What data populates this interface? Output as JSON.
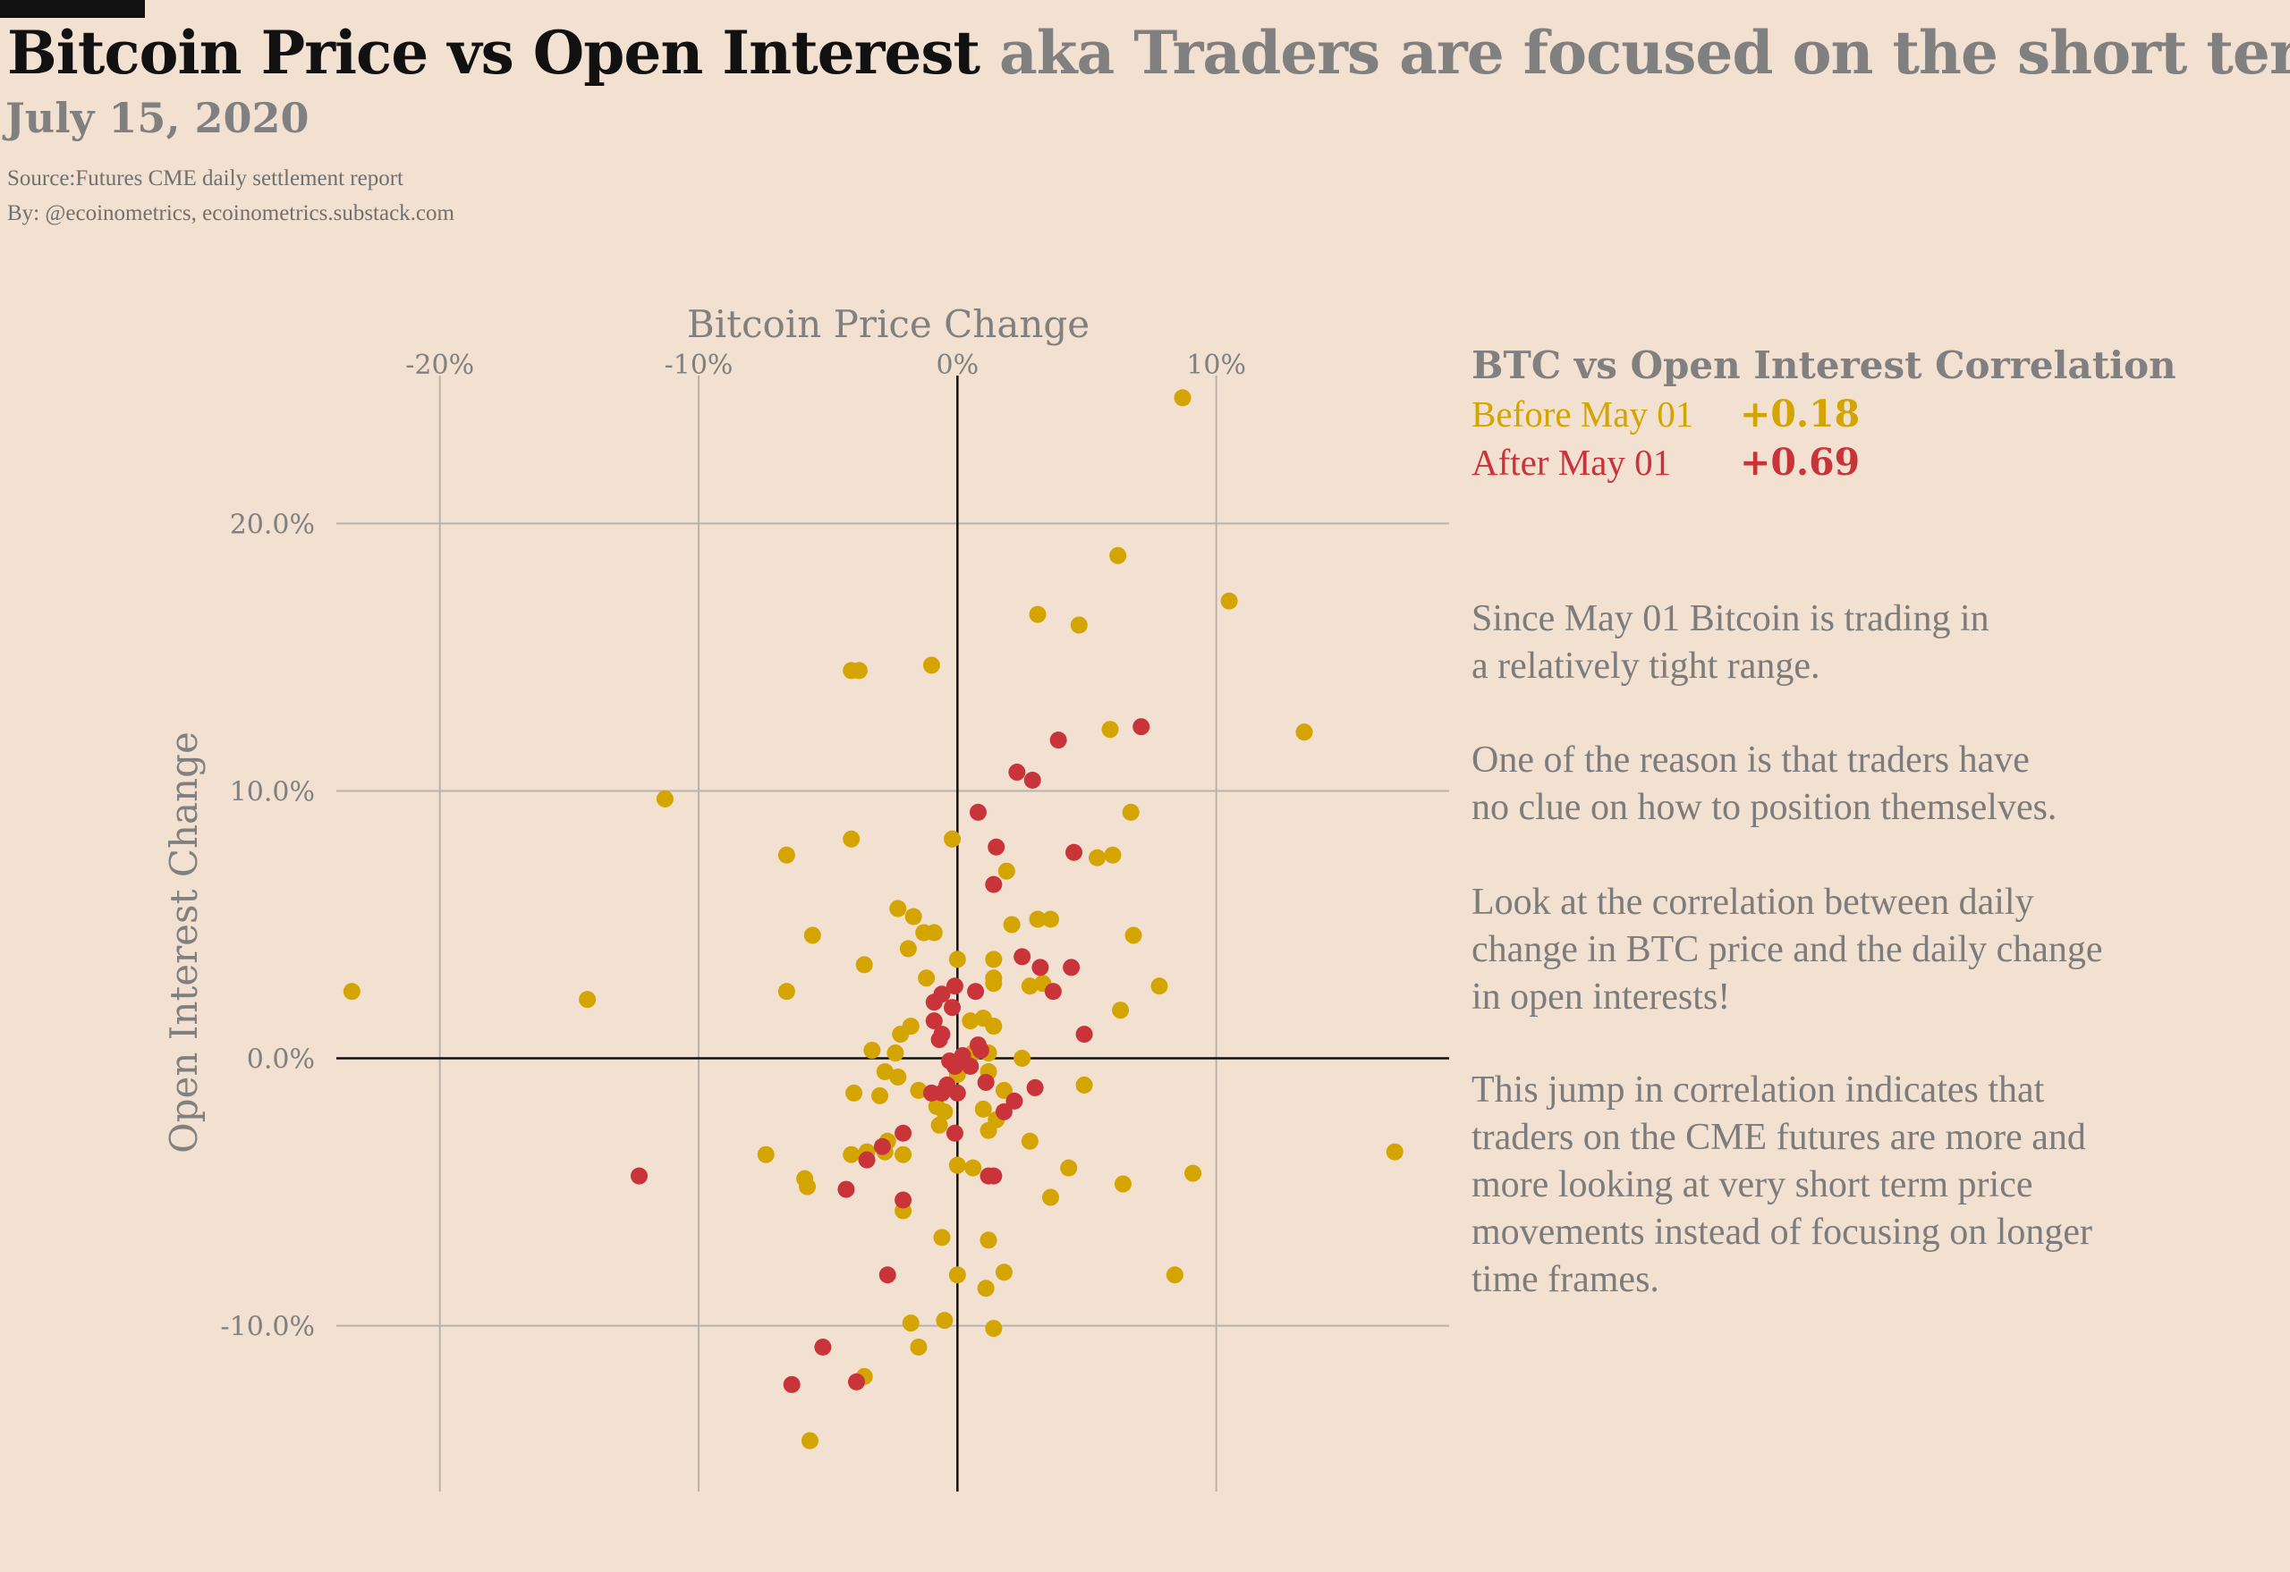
{
  "header": {
    "title_main": "Bitcoin Price vs Open Interest",
    "title_sub": "aka Traders are focused on the short term",
    "date": "July 15, 2020",
    "source": "Source:Futures CME daily settlement report",
    "byline": "By: @ecoinometrics, ecoinometrics.substack.com"
  },
  "legend": {
    "title": "BTC vs Open Interest Correlation",
    "before_label": "Before May 01",
    "before_value": "+0.18",
    "after_label": "After May 01",
    "after_value": "+0.69"
  },
  "narrative": [
    [
      "Since May 01 Bitcoin is trading in",
      "a relatively tight range."
    ],
    [
      "One of the reason is that traders have",
      "no clue on how to position themselves."
    ],
    [
      "Look at the correlation between daily",
      "change in BTC price and the daily change",
      "in open interests!"
    ],
    [
      "This jump in correlation indicates that",
      "traders on the CME futures are more and",
      "more looking at very short term price",
      "movements instead of focusing on longer",
      "time frames."
    ]
  ],
  "colors": {
    "background": "#f2e0d0",
    "before": "#d4a400",
    "after": "#c8343a",
    "grid": "#b8b3ad",
    "axis": "#111111"
  },
  "chart_data": {
    "type": "scatter",
    "xlabel": "Bitcoin Price Change",
    "ylabel": "Open Interest Change",
    "xlim": [
      -0.24,
      0.19
    ],
    "ylim": [
      -0.162,
      0.262
    ],
    "x_ticks": [
      -0.2,
      -0.1,
      0,
      0.1
    ],
    "x_tick_labels": [
      "-20%",
      "-10%",
      "0%",
      "10%"
    ],
    "y_ticks": [
      0.2,
      0.1,
      0,
      -0.1
    ],
    "y_tick_labels": [
      "20.0%",
      "10.0%",
      "0.0%",
      "-10.0%"
    ],
    "x_axis_position": "top",
    "grid": true,
    "series": [
      {
        "name": "Before May 01",
        "color": "#d4a400",
        "points": [
          [
            0.087,
            0.247
          ],
          [
            0.062,
            0.188
          ],
          [
            0.105,
            0.171
          ],
          [
            0.031,
            0.166
          ],
          [
            0.047,
            0.162
          ],
          [
            -0.038,
            0.145
          ],
          [
            -0.041,
            0.145
          ],
          [
            -0.01,
            0.147
          ],
          [
            0.059,
            0.123
          ],
          [
            0.134,
            0.122
          ],
          [
            -0.113,
            0.097
          ],
          [
            0.067,
            0.092
          ],
          [
            -0.041,
            0.082
          ],
          [
            -0.002,
            0.082
          ],
          [
            -0.066,
            0.076
          ],
          [
            0.054,
            0.075
          ],
          [
            0.06,
            0.076
          ],
          [
            0.019,
            0.07
          ],
          [
            -0.023,
            0.056
          ],
          [
            -0.017,
            0.053
          ],
          [
            0.031,
            0.052
          ],
          [
            0.036,
            0.052
          ],
          [
            -0.013,
            0.047
          ],
          [
            -0.009,
            0.047
          ],
          [
            0.021,
            0.05
          ],
          [
            -0.056,
            0.046
          ],
          [
            0.068,
            0.046
          ],
          [
            -0.019,
            0.041
          ],
          [
            0.0,
            0.037
          ],
          [
            0.014,
            0.037
          ],
          [
            -0.036,
            0.035
          ],
          [
            0.014,
            0.03
          ],
          [
            -0.012,
            0.03
          ],
          [
            0.014,
            0.028
          ],
          [
            0.028,
            0.027
          ],
          [
            0.033,
            0.028
          ],
          [
            -0.066,
            0.025
          ],
          [
            0.078,
            0.027
          ],
          [
            -0.234,
            0.025
          ],
          [
            -0.143,
            0.022
          ],
          [
            0.063,
            0.018
          ],
          [
            0.005,
            0.014
          ],
          [
            0.01,
            0.015
          ],
          [
            0.014,
            0.012
          ],
          [
            -0.018,
            0.012
          ],
          [
            -0.022,
            0.009
          ],
          [
            -0.033,
            0.003
          ],
          [
            -0.024,
            0.002
          ],
          [
            0.006,
            0.002
          ],
          [
            0.012,
            0.002
          ],
          [
            0.025,
            0.0
          ],
          [
            -0.028,
            -0.005
          ],
          [
            -0.023,
            -0.007
          ],
          [
            0.0,
            -0.006
          ],
          [
            0.012,
            -0.005
          ],
          [
            0.049,
            -0.01
          ],
          [
            -0.015,
            -0.012
          ],
          [
            -0.03,
            -0.014
          ],
          [
            -0.04,
            -0.013
          ],
          [
            0.018,
            -0.012
          ],
          [
            -0.008,
            -0.018
          ],
          [
            -0.005,
            -0.02
          ],
          [
            0.01,
            -0.019
          ],
          [
            0.015,
            -0.023
          ],
          [
            -0.007,
            -0.025
          ],
          [
            0.012,
            -0.027
          ],
          [
            -0.027,
            -0.031
          ],
          [
            -0.035,
            -0.035
          ],
          [
            -0.028,
            -0.035
          ],
          [
            -0.021,
            -0.036
          ],
          [
            -0.074,
            -0.036
          ],
          [
            -0.041,
            -0.036
          ],
          [
            0.028,
            -0.031
          ],
          [
            0.0,
            -0.04
          ],
          [
            0.006,
            -0.041
          ],
          [
            0.043,
            -0.041
          ],
          [
            0.091,
            -0.043
          ],
          [
            -0.059,
            -0.045
          ],
          [
            -0.058,
            -0.048
          ],
          [
            0.064,
            -0.047
          ],
          [
            0.036,
            -0.052
          ],
          [
            -0.021,
            -0.057
          ],
          [
            -0.006,
            -0.067
          ],
          [
            0.012,
            -0.068
          ],
          [
            0.018,
            -0.08
          ],
          [
            0.0,
            -0.081
          ],
          [
            0.011,
            -0.086
          ],
          [
            0.084,
            -0.081
          ],
          [
            -0.018,
            -0.099
          ],
          [
            -0.005,
            -0.098
          ],
          [
            0.014,
            -0.101
          ],
          [
            -0.015,
            -0.108
          ],
          [
            -0.036,
            -0.119
          ],
          [
            -0.057,
            -0.143
          ],
          [
            0.169,
            -0.035
          ]
        ]
      },
      {
        "name": "After May 01",
        "color": "#c8343a",
        "points": [
          [
            0.071,
            0.124
          ],
          [
            0.039,
            0.119
          ],
          [
            0.023,
            0.107
          ],
          [
            0.029,
            0.104
          ],
          [
            0.008,
            0.092
          ],
          [
            0.015,
            0.079
          ],
          [
            0.045,
            0.077
          ],
          [
            0.014,
            0.065
          ],
          [
            0.025,
            0.038
          ],
          [
            0.032,
            0.034
          ],
          [
            0.044,
            0.034
          ],
          [
            0.037,
            0.025
          ],
          [
            -0.001,
            0.027
          ],
          [
            0.007,
            0.025
          ],
          [
            -0.006,
            0.024
          ],
          [
            -0.009,
            0.021
          ],
          [
            -0.002,
            0.019
          ],
          [
            -0.009,
            0.014
          ],
          [
            0.049,
            0.009
          ],
          [
            -0.006,
            0.009
          ],
          [
            -0.007,
            0.007
          ],
          [
            0.008,
            0.005
          ],
          [
            0.009,
            0.003
          ],
          [
            0.002,
            0.001
          ],
          [
            -0.003,
            -0.001
          ],
          [
            0.005,
            -0.003
          ],
          [
            -0.001,
            -0.003
          ],
          [
            0.011,
            -0.009
          ],
          [
            0.03,
            -0.011
          ],
          [
            -0.004,
            -0.01
          ],
          [
            -0.01,
            -0.013
          ],
          [
            0.0,
            -0.013
          ],
          [
            -0.006,
            -0.013
          ],
          [
            0.022,
            -0.016
          ],
          [
            0.018,
            -0.02
          ],
          [
            -0.021,
            -0.028
          ],
          [
            -0.029,
            -0.033
          ],
          [
            -0.035,
            -0.038
          ],
          [
            -0.123,
            -0.044
          ],
          [
            -0.043,
            -0.049
          ],
          [
            0.014,
            -0.044
          ],
          [
            0.012,
            -0.044
          ],
          [
            -0.021,
            -0.053
          ],
          [
            -0.027,
            -0.081
          ],
          [
            -0.052,
            -0.108
          ],
          [
            -0.064,
            -0.122
          ],
          [
            -0.039,
            -0.121
          ],
          [
            -0.001,
            -0.028
          ]
        ]
      }
    ]
  }
}
